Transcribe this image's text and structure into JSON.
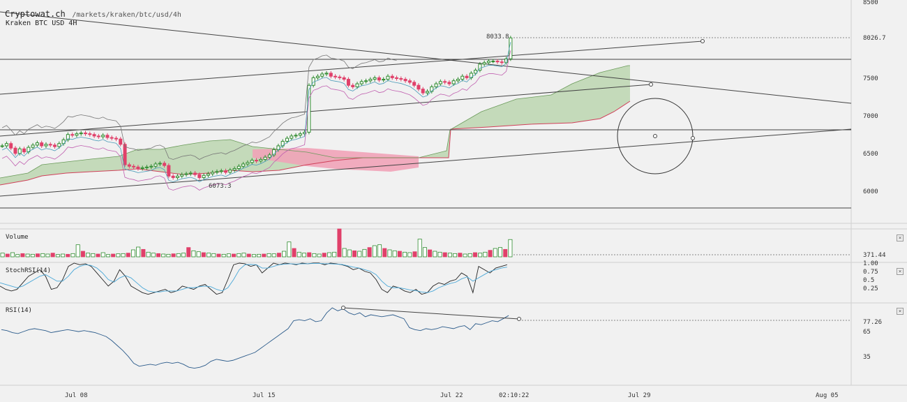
{
  "header": {
    "site": "Cryptowat.ch",
    "path": "/markets/kraken/btc/usd/4h",
    "market": "Kraken BTC USD 4H"
  },
  "panes": {
    "volume_label": "Volume",
    "stoch_label": "StochRSI(14)",
    "rsi_label": "RSI(14)"
  },
  "annotations": {
    "high_label": "8033.8",
    "low_label": "6073.3"
  },
  "chart_data": [
    {
      "type": "candlestick",
      "title": "Kraken BTC USD 4H",
      "y_ticks": [
        8500,
        8026.7,
        7500,
        7000,
        6500,
        6000
      ],
      "y_tick_labels": [
        "8500",
        "8026.7",
        "7500",
        "7000",
        "6500",
        "6000"
      ],
      "last_price": 8026.7,
      "high_marker": 8033.8,
      "low_marker": 6073.3,
      "x_tick_labels": [
        "Jul 08",
        "Jul 15",
        "Jul 22",
        "02:10:22",
        "Jul 29",
        "Aug 05"
      ],
      "overlays": [
        "Ichimoku cloud",
        "trend lines",
        "circle annotation"
      ],
      "colors": {
        "up": "#2e8b2e",
        "down": "#e0406a",
        "cloud_up": "#bcd6b0",
        "cloud_down": "#f1a3b8"
      },
      "close_series": [
        6600,
        6630,
        6570,
        6500,
        6560,
        6520,
        6580,
        6610,
        6640,
        6600,
        6620,
        6610,
        6590,
        6630,
        6680,
        6750,
        6740,
        6760,
        6770,
        6760,
        6750,
        6730,
        6720,
        6740,
        6710,
        6700,
        6690,
        6620,
        6350,
        6330,
        6320,
        6300,
        6310,
        6320,
        6330,
        6360,
        6370,
        6340,
        6200,
        6180,
        6200,
        6220,
        6230,
        6240,
        6220,
        6180,
        6210,
        6230,
        6250,
        6260,
        6270,
        6250,
        6280,
        6300,
        6330,
        6360,
        6380,
        6410,
        6400,
        6420,
        6450,
        6480,
        6550,
        6600,
        6660,
        6700,
        6730,
        6740,
        6760,
        6780,
        7400,
        7500,
        7520,
        7550,
        7560,
        7520,
        7510,
        7500,
        7480,
        7400,
        7380,
        7420,
        7450,
        7460,
        7480,
        7500,
        7470,
        7480,
        7520,
        7500,
        7490,
        7480,
        7460,
        7440,
        7400,
        7350,
        7300,
        7320,
        7380,
        7420,
        7450,
        7440,
        7420,
        7460,
        7480,
        7520,
        7500,
        7560,
        7600,
        7680,
        7700,
        7720,
        7720,
        7710,
        7700,
        7750,
        8026.7
      ]
    },
    {
      "type": "bar",
      "title": "Volume",
      "last_value": 371.44,
      "y_tick_labels": [
        "371.44"
      ],
      "values": [
        80,
        60,
        90,
        50,
        70,
        60,
        55,
        65,
        70,
        60,
        80,
        50,
        60,
        55,
        70,
        260,
        120,
        80,
        70,
        60,
        90,
        50,
        60,
        65,
        70,
        80,
        150,
        210,
        160,
        100,
        80,
        70,
        60,
        55,
        65,
        70,
        80,
        200,
        130,
        110,
        90,
        80,
        70,
        60,
        55,
        65,
        60,
        70,
        80,
        60,
        50,
        55,
        60,
        70,
        65,
        80,
        120,
        320,
        180,
        100,
        80,
        90,
        70,
        60,
        80,
        90,
        100,
        600,
        180,
        150,
        130,
        120,
        160,
        200,
        240,
        260,
        180,
        150,
        130,
        120,
        100,
        90,
        110,
        380,
        200,
        150,
        120,
        100,
        90,
        80,
        70,
        80,
        60,
        70,
        90,
        80,
        100,
        140,
        180,
        200,
        160,
        371.44
      ]
    },
    {
      "type": "line",
      "title": "StochRSI(14)",
      "y_tick_labels": [
        "1.00",
        "0.75",
        "0.5",
        "0.25"
      ],
      "series": [
        {
          "values": [
            0.3,
            0.2,
            0.15,
            0.2,
            0.4,
            0.6,
            0.7,
            0.8,
            0.6,
            0.2,
            0.25,
            0.5,
            0.9,
            1.0,
            0.95,
            0.98,
            0.9,
            0.7,
            0.5,
            0.3,
            0.45,
            0.8,
            0.6,
            0.3,
            0.2,
            0.1,
            0.05,
            0.1,
            0.15,
            0.2,
            0.1,
            0.15,
            0.3,
            0.25,
            0.2,
            0.3,
            0.35,
            0.2,
            0.05,
            0.1,
            0.5,
            0.95,
            1.0,
            0.98,
            0.9,
            0.95,
            0.7,
            0.85,
            1.0,
            0.95,
            1.0,
            0.98,
            0.95,
            1.0,
            0.98,
            1.0,
            1.0,
            0.95,
            1.0,
            0.98,
            0.95,
            0.9,
            0.8,
            0.85,
            0.75,
            0.7,
            0.5,
            0.2,
            0.1,
            0.3,
            0.25,
            0.15,
            0.1,
            0.2,
            0.05,
            0.1,
            0.3,
            0.4,
            0.35,
            0.45,
            0.5,
            0.7,
            0.6,
            0.1,
            0.9,
            0.8,
            0.7,
            0.85,
            0.9,
            0.95
          ]
        },
        {
          "values": [
            0.4,
            0.35,
            0.3,
            0.25,
            0.3,
            0.4,
            0.5,
            0.6,
            0.65,
            0.55,
            0.45,
            0.45,
            0.6,
            0.8,
            0.9,
            0.95,
            0.93,
            0.85,
            0.7,
            0.5,
            0.42,
            0.55,
            0.62,
            0.55,
            0.4,
            0.25,
            0.15,
            0.12,
            0.12,
            0.15,
            0.15,
            0.15,
            0.2,
            0.25,
            0.25,
            0.28,
            0.3,
            0.28,
            0.2,
            0.15,
            0.25,
            0.5,
            0.8,
            0.95,
            0.96,
            0.95,
            0.85,
            0.85,
            0.9,
            0.95,
            0.97,
            0.98,
            0.97,
            0.98,
            0.98,
            0.99,
            0.99,
            0.98,
            0.98,
            0.97,
            0.96,
            0.92,
            0.88,
            0.85,
            0.8,
            0.75,
            0.65,
            0.45,
            0.3,
            0.25,
            0.25,
            0.22,
            0.18,
            0.16,
            0.12,
            0.1,
            0.15,
            0.25,
            0.32,
            0.38,
            0.42,
            0.52,
            0.58,
            0.45,
            0.55,
            0.65,
            0.75,
            0.8,
            0.85,
            0.88
          ]
        }
      ]
    },
    {
      "type": "line",
      "title": "RSI(14)",
      "last_value": 77.26,
      "y_tick_labels": [
        "77.26",
        "65",
        "35"
      ],
      "values": [
        63,
        62,
        60,
        59,
        61,
        63,
        64,
        63,
        62,
        60,
        61,
        62,
        63,
        62,
        61,
        62,
        61,
        60,
        58,
        56,
        52,
        47,
        42,
        36,
        29,
        26,
        27,
        28,
        27,
        29,
        30,
        29,
        30,
        28,
        25,
        24,
        25,
        27,
        31,
        33,
        32,
        31,
        32,
        34,
        36,
        38,
        40,
        44,
        48,
        52,
        56,
        60,
        64,
        72,
        73,
        72,
        74,
        71,
        72,
        80,
        85,
        82,
        84,
        80,
        78,
        80,
        76,
        78,
        77,
        76,
        77,
        78,
        76,
        74,
        65,
        63,
        62,
        64,
        63,
        64,
        66,
        65,
        64,
        66,
        67,
        63,
        69,
        68,
        70,
        72,
        71,
        74,
        77.26
      ]
    }
  ]
}
